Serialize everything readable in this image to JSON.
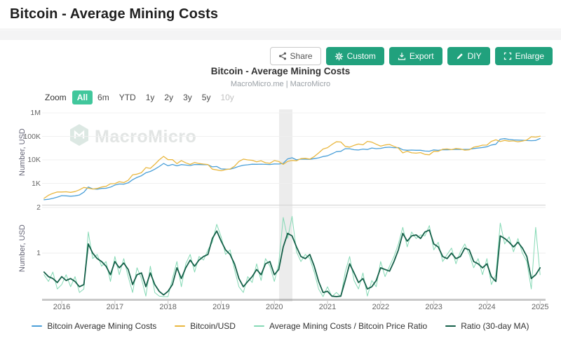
{
  "header": {
    "title": "Bitcoin - Average Mining Costs"
  },
  "toolbar": {
    "share": "Share",
    "custom": "Custom",
    "export": "Export",
    "diy": "DIY",
    "enlarge": "Enlarge"
  },
  "chart": {
    "title": "Bitcoin - Average Mining Costs",
    "subtitle": "MacroMicro.me | MacroMicro",
    "watermark": "MacroMicro"
  },
  "zoom": {
    "label": "Zoom",
    "options": [
      {
        "label": "All",
        "state": "active"
      },
      {
        "label": "6m",
        "state": "normal"
      },
      {
        "label": "YTD",
        "state": "normal"
      },
      {
        "label": "1y",
        "state": "normal"
      },
      {
        "label": "2y",
        "state": "normal"
      },
      {
        "label": "3y",
        "state": "normal"
      },
      {
        "label": "5y",
        "state": "normal"
      },
      {
        "label": "10y",
        "state": "disabled"
      }
    ]
  },
  "colors": {
    "accent_green": "#21a17d",
    "zoom_active": "#41c79c",
    "plot_band": "#ececec",
    "axis_text": "#666666",
    "scrollbar": "#c9c9c9"
  },
  "legend": {
    "items": [
      {
        "label": "Bitcoin Average Mining Costs",
        "color": "#4a9fd8"
      },
      {
        "label": "Bitcoin/USD",
        "color": "#e9b73f"
      },
      {
        "label": "Average Mining Costs / Bitcoin Price Ratio",
        "color": "#85d9b5"
      },
      {
        "label": "Ratio (30-day MA)",
        "color": "#156049"
      }
    ]
  },
  "chart_data": {
    "type": "line",
    "x_start": 2015.6667,
    "x_step_months": 1,
    "xticks": [
      2016,
      2017,
      2018,
      2019,
      2020,
      2021,
      2022,
      2023,
      2024,
      2025
    ],
    "plot_band": {
      "from": 2020.09,
      "to": 2020.34,
      "color": "#ececec"
    },
    "legend_position": "bottom",
    "panels": [
      {
        "ylabel": "Number, USD",
        "scale": "log",
        "ytick_labels": [
          "1M",
          "100K",
          "10K",
          "1K"
        ],
        "ytick_values": [
          1000000,
          100000,
          10000,
          1000
        ],
        "series": [
          {
            "name": "Bitcoin Average Mining Costs",
            "color": "#4a9fd8",
            "width": 1.3,
            "values": [
              200,
              210,
              230,
              260,
              300,
              295,
              285,
              295,
              320,
              420,
              700,
              580,
              560,
              610,
              620,
              690,
              850,
              940,
              930,
              1050,
              1430,
              1790,
              2120,
              2820,
              3220,
              4000,
              5200,
              7050,
              5600,
              6380,
              5560,
              6290,
              6000,
              5760,
              6360,
              6300,
              6270,
              6220,
              5060,
              5250,
              4130,
              4040,
              4020,
              4550,
              5300,
              5940,
              6200,
              6530,
              6470,
              6590,
              6420,
              6340,
              6730,
              6670,
              7100,
              11000,
              12300,
              10100,
              10800,
              10700,
              10560,
              11300,
              12200,
              13900,
              14900,
              18100,
              22300,
              23100,
              30000,
              29800,
              27000,
              26300,
              28900,
              27600,
              31900,
              30000,
              30800,
              33700,
              34600,
              33100,
              33400,
              26900,
              25600,
              26100,
              25600,
              25600,
              23700,
              23500,
              26600,
              25500,
              27000,
              26900,
              27200,
              28000,
              27800,
              28000,
              28300,
              30500,
              32000,
              33800,
              36200,
              42800,
              46300,
              76000,
              80000,
              74000,
              71000,
              69500,
              68400,
              66700,
              65600,
              67200,
              81600
            ]
          },
          {
            "name": "Bitcoin/USD",
            "color": "#e9b73f",
            "width": 1.3,
            "values": [
              230,
              311,
              377,
              430,
              430,
              437,
              416,
              448,
              531,
              673,
              624,
              575,
              610,
              700,
              745,
              963,
              970,
              1180,
              1080,
              1350,
              2300,
              2480,
              2870,
              4700,
              4350,
              6450,
              10000,
              14100,
              10200,
              10300,
              6950,
              9250,
              7500,
              6400,
              7750,
              7000,
              6600,
              6350,
              4050,
              3750,
              3440,
              3850,
              4100,
              5350,
              8550,
              10800,
              10000,
              9600,
              8300,
              9150,
              7550,
              7200,
              9350,
              8550,
              6450,
              8650,
              9450,
              9140,
              11350,
              11650,
              10780,
              13800,
              19700,
              29000,
              33100,
              45200,
              58800,
              57750,
              37300,
              35000,
              41600,
              47150,
              43800,
              61300,
              57000,
              46200,
              38500,
              43200,
              45500,
              37650,
              31800,
              19900,
              23300,
              20050,
              19400,
              20500,
              17150,
              16550,
              23100,
              23150,
              28450,
              29250,
              27200,
              30450,
              29250,
              25950,
              26950,
              34650,
              37700,
              42250,
              42550,
              61200,
              71300,
              60600,
              67500,
              62700,
              64600,
              58950,
              63350,
              70200,
              96400,
              93400,
              102000
            ]
          }
        ]
      },
      {
        "ylabel": "Number, USD",
        "scale": "log",
        "ytick_labels": [
          "2",
          "1"
        ],
        "ytick_values": [
          2,
          1
        ],
        "series": [
          {
            "name": "Average Mining Costs / Bitcoin Price Ratio",
            "color": "#85d9b5",
            "width": 1,
            "values": [
              0.72,
              0.65,
              0.75,
              0.58,
              0.62,
              0.72,
              0.6,
              0.7,
              0.55,
              0.58,
              1.38,
              0.92,
              0.98,
              0.82,
              0.88,
              0.65,
              0.95,
              0.72,
              0.92,
              0.7,
              0.55,
              0.8,
              0.68,
              0.52,
              0.82,
              0.55,
              0.52,
              0.5,
              0.5,
              0.68,
              0.88,
              0.6,
              0.85,
              0.98,
              0.75,
              0.95,
              0.9,
              1.05,
              1.18,
              1.55,
              1.28,
              0.98,
              1.05,
              0.78,
              0.6,
              0.55,
              0.7,
              0.64,
              0.85,
              0.66,
              0.92,
              0.82,
              0.65,
              0.85,
              1.72,
              1.25,
              1.75,
              1.02,
              0.88,
              0.98,
              0.92,
              0.75,
              0.58,
              0.5,
              0.6,
              0.48,
              0.55,
              0.48,
              0.75,
              0.95,
              0.66,
              0.58,
              0.74,
              0.52,
              0.66,
              0.6,
              0.88,
              0.7,
              0.82,
              0.95,
              1.15,
              1.48,
              1.1,
              1.38,
              1.25,
              1.32,
              1.3,
              1.52,
              1.05,
              1.18,
              0.88,
              0.98,
              1.08,
              0.85,
              1.02,
              1.15,
              0.98,
              0.8,
              0.92,
              0.72,
              0.92,
              0.62,
              0.72,
              1.58,
              1.15,
              1.28,
              1.02,
              1.25,
              1.0,
              0.88,
              0.58,
              1.48,
              0.72
            ]
          },
          {
            "name": "Ratio (30-day MA)",
            "color": "#156049",
            "width": 1.8,
            "values": [
              0.75,
              0.7,
              0.68,
              0.64,
              0.7,
              0.66,
              0.68,
              0.65,
              0.6,
              0.62,
              1.15,
              1.0,
              0.92,
              0.88,
              0.82,
              0.72,
              0.88,
              0.8,
              0.86,
              0.78,
              0.62,
              0.72,
              0.74,
              0.6,
              0.74,
              0.62,
              0.56,
              0.53,
              0.56,
              0.62,
              0.8,
              0.68,
              0.8,
              0.9,
              0.82,
              0.9,
              0.95,
              0.98,
              1.25,
              1.4,
              1.2,
              1.05,
              0.98,
              0.85,
              0.68,
              0.6,
              0.65,
              0.7,
              0.78,
              0.72,
              0.85,
              0.88,
              0.72,
              0.78,
              1.1,
              1.35,
              1.3,
              1.1,
              0.95,
              0.92,
              0.98,
              0.82,
              0.65,
              0.55,
              0.56,
              0.52,
              0.5,
              0.52,
              0.66,
              0.85,
              0.74,
              0.64,
              0.68,
              0.58,
              0.6,
              0.66,
              0.8,
              0.78,
              0.76,
              0.88,
              1.05,
              1.35,
              1.2,
              1.3,
              1.32,
              1.25,
              1.38,
              1.42,
              1.15,
              1.1,
              0.95,
              0.92,
              1.0,
              0.92,
              0.95,
              1.08,
              1.05,
              0.88,
              0.85,
              0.8,
              0.85,
              0.7,
              0.65,
              1.3,
              1.25,
              1.18,
              1.1,
              1.18,
              1.08,
              0.95,
              0.68,
              0.72,
              0.8
            ]
          }
        ]
      }
    ]
  }
}
